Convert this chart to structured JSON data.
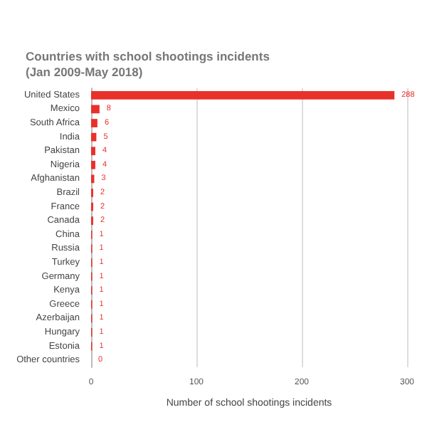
{
  "chart_data": {
    "type": "bar",
    "orientation": "horizontal",
    "title": "Countries with school shootings incidents",
    "subtitle": "(Jan 2009-May 2018)",
    "xlabel": "Number of school shootings incidents",
    "categories": [
      "United States",
      "Mexico",
      "South Africa",
      "India",
      "Pakistan",
      "Nigeria",
      "Afghanistan",
      "Brazil",
      "France",
      "Canada",
      "China",
      "Russia",
      "Turkey",
      "Germany",
      "Kenya",
      "Greece",
      "Azerbaijan",
      "Hungary",
      "Estonia",
      "Other countries"
    ],
    "values": [
      288,
      8,
      6,
      5,
      4,
      4,
      3,
      2,
      2,
      2,
      1,
      1,
      1,
      1,
      1,
      1,
      1,
      1,
      1,
      0
    ],
    "color": "#e8312a",
    "xlim": [
      0,
      300
    ],
    "xticks": [
      0,
      100,
      200,
      300
    ],
    "grid": "x",
    "data_labels": true
  }
}
